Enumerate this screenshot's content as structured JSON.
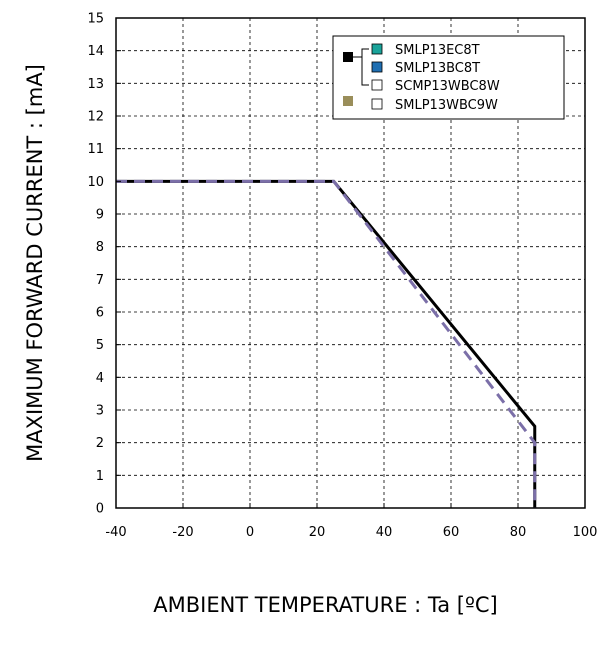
{
  "chart_data": {
    "type": "line",
    "xlabel": "AMBIENT TEMPERATURE : Ta [ºC]",
    "ylabel": "MAXIMUM FORWARD CURRENT :  [mA]",
    "xlim": [
      -40,
      100
    ],
    "ylim": [
      0,
      15
    ],
    "xticks": [
      -40,
      -20,
      0,
      20,
      40,
      60,
      80,
      100
    ],
    "yticks": [
      0,
      1,
      2,
      3,
      4,
      5,
      6,
      7,
      8,
      9,
      10,
      11,
      12,
      13,
      14,
      15
    ],
    "grid": true,
    "legend_position": "top-right",
    "legend": [
      {
        "text": "SMLP13EC8T",
        "swatch": "#1aa39a"
      },
      {
        "text": "SMLP13BC8T",
        "swatch": "#1f6fb2"
      },
      {
        "text": "SCMP13WBC8W",
        "swatch": "#ffffff"
      },
      {
        "text": "SMLP13WBC9W",
        "swatch": "#ffffff"
      }
    ],
    "series": [
      {
        "color": "#000000",
        "style": "solid",
        "x": [
          -40,
          25,
          85,
          85
        ],
        "y": [
          10,
          10,
          2.5,
          0
        ]
      },
      {
        "color": "#7b6fa8",
        "style": "dashed",
        "x": [
          -40,
          25,
          85,
          85
        ],
        "y": [
          10,
          10,
          2,
          0
        ]
      }
    ],
    "group_markers": [
      {
        "color": "#000000"
      },
      {
        "color": "#9a8e5a"
      }
    ]
  }
}
